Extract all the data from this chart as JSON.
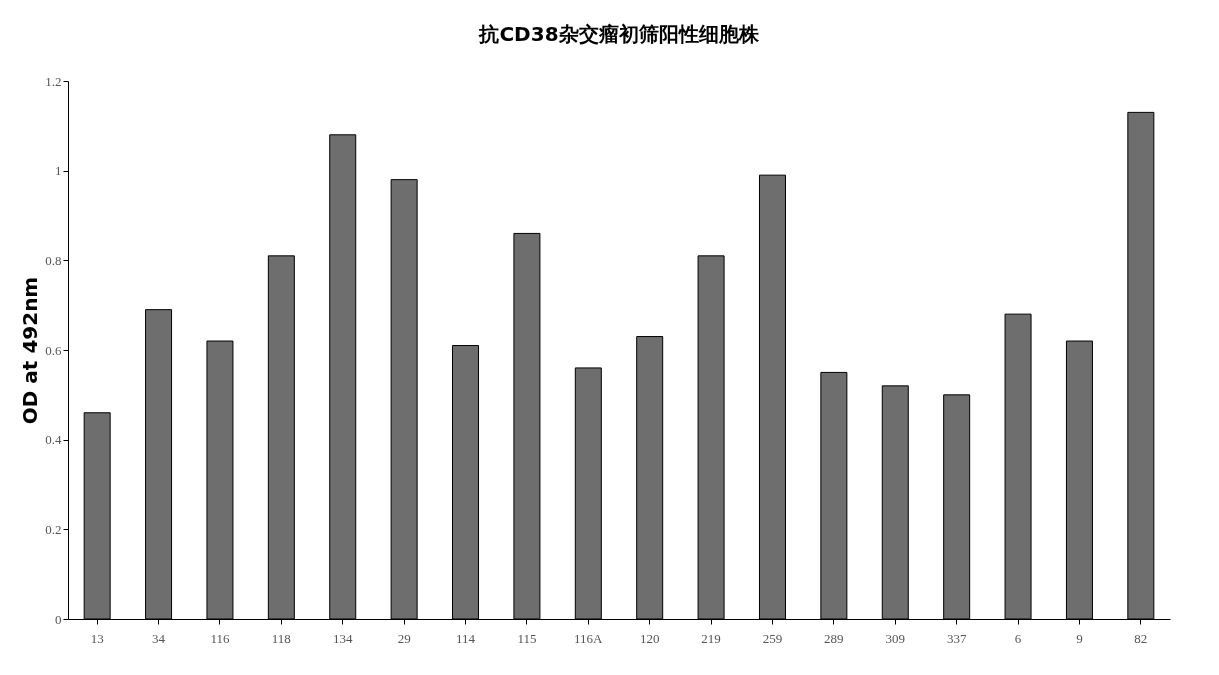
{
  "chart_data": {
    "type": "bar",
    "title": "抗CD38杂交瘤初筛阳性细胞株",
    "ylabel": "OD at 492nm",
    "categories": [
      "13",
      "34",
      "116",
      "118",
      "134",
      "29",
      "114",
      "115",
      "116A",
      "120",
      "219",
      "259",
      "289",
      "309",
      "337",
      "6",
      "9",
      "82"
    ],
    "values": [
      0.46,
      0.69,
      0.62,
      0.81,
      1.08,
      0.98,
      0.61,
      0.86,
      0.56,
      0.63,
      0.81,
      0.99,
      0.55,
      0.52,
      0.5,
      0.68,
      0.62,
      1.13
    ],
    "color": "#6e6e6e",
    "ylim": [
      0,
      1.2
    ],
    "yticks": [
      0,
      0.2,
      0.4,
      0.6,
      0.8,
      1,
      1.2
    ],
    "grid": false
  }
}
